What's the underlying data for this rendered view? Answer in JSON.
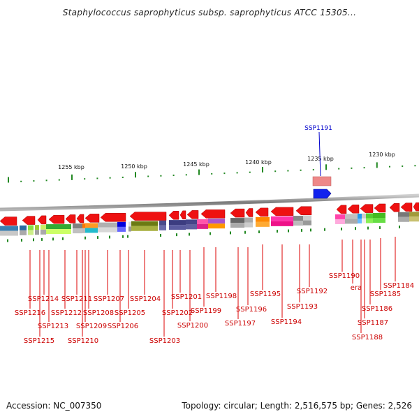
{
  "title": "Staphylococcus saprophyticus subsp. saprophyticus ATCC 15305...",
  "footer": {
    "accession": "Accession: NC_007350",
    "topology": "Topology: circular; Length: 2,516,575 bp; Genes: 2,526"
  },
  "ruler": {
    "unit": "kbp",
    "labels": [
      "1255 kbp",
      "1250 kbp",
      "1245 kbp",
      "1240 kbp",
      "1235 kbp",
      "1230 kbp"
    ]
  },
  "highlighted_gene": {
    "name": "SSP1191",
    "color": "#0000cc"
  },
  "gene_labels": [
    "SSP1216",
    "SSP1215",
    "SSP1214",
    "SSP1213",
    "SSP1212",
    "SSP1211",
    "SSP1210",
    "SSP1209",
    "SSP1208",
    "SSP1207",
    "SSP1206",
    "SSP1205",
    "SSP1204",
    "SSP1203",
    "SSP1202",
    "SSP1201",
    "SSP1200",
    "SSP1199",
    "SSP1198",
    "SSP1197",
    "SSP1196",
    "SSP1195",
    "SSP1194",
    "SSP1193",
    "SSP1192",
    "SSP1190",
    "era",
    "SSP1188",
    "SSP1187",
    "SSP1186",
    "SSP1185",
    "SSP1184"
  ],
  "colors": {
    "gene_arrow": "#ee1111",
    "label_text": "#cc0000",
    "leader_line": "#dd0000",
    "tick": "#228822",
    "backbone": "#8a8a8a"
  }
}
